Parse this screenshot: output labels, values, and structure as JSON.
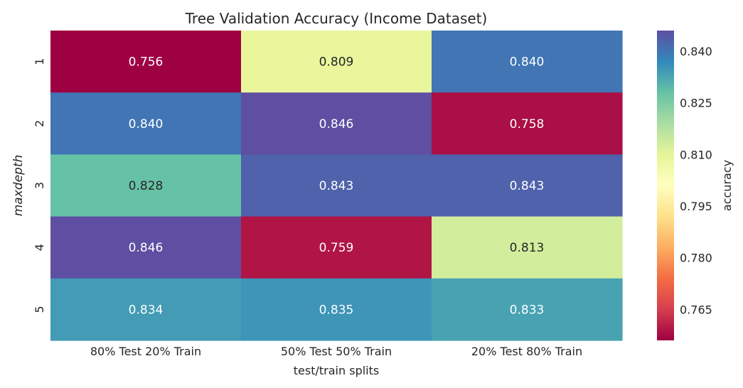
{
  "chart_data": {
    "type": "heatmap",
    "title": "Tree Validation Accuracy (Income Dataset)",
    "xlabel": "test/train splits",
    "ylabel": "maxdepth",
    "x_categories": [
      "80% Test 20% Train",
      "50% Test 50% Train",
      "20% Test 80% Train"
    ],
    "y_categories": [
      "1",
      "2",
      "3",
      "4",
      "5"
    ],
    "values": [
      [
        0.756,
        0.809,
        0.84
      ],
      [
        0.84,
        0.846,
        0.758
      ],
      [
        0.828,
        0.843,
        0.843
      ],
      [
        0.846,
        0.759,
        0.813
      ],
      [
        0.834,
        0.835,
        0.833
      ]
    ],
    "value_labels": [
      [
        "0.756",
        "0.809",
        "0.840"
      ],
      [
        "0.840",
        "0.846",
        "0.758"
      ],
      [
        "0.828",
        "0.843",
        "0.843"
      ],
      [
        "0.846",
        "0.759",
        "0.813"
      ],
      [
        "0.834",
        "0.835",
        "0.833"
      ]
    ],
    "colormap": "Spectral",
    "colorbar": {
      "label": "accuracy",
      "range": [
        0.756,
        0.846
      ],
      "ticks": [
        0.765,
        0.78,
        0.795,
        0.81,
        0.825,
        0.84
      ],
      "tick_labels": [
        "0.765",
        "0.780",
        "0.795",
        "0.810",
        "0.825",
        "0.840"
      ]
    },
    "colors": {
      "low": "#9e0142",
      "mid": "#ffffbf",
      "high": "#5e4fa2",
      "light_text": "#ffffff",
      "dark_text": "#262626"
    }
  }
}
